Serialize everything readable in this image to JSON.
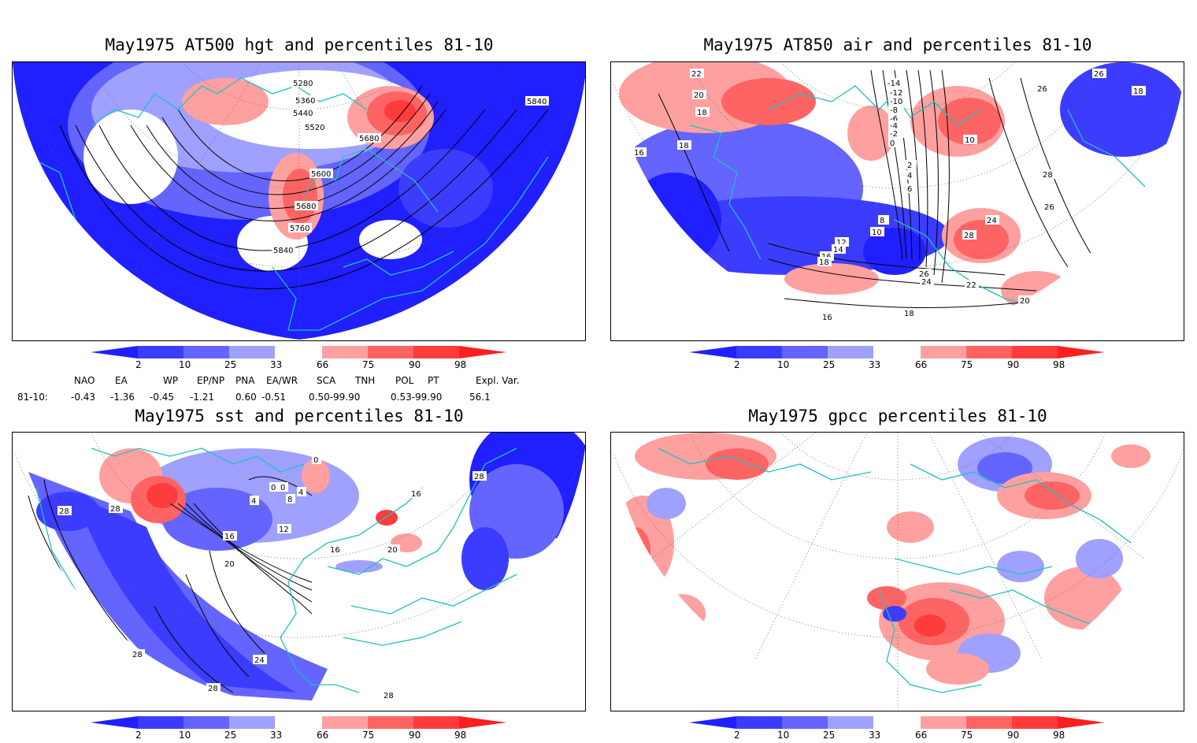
{
  "panels": [
    {
      "title": "May1975 AT500 hgt and percentiles 81-10",
      "contour_labels": [
        "5280",
        "5360",
        "5440",
        "5520",
        "5600",
        "5680",
        "5760",
        "5840",
        "5680",
        "5840"
      ]
    },
    {
      "title": "May1975 AT850 air and percentiles 81-10",
      "contour_labels": [
        "22",
        "20",
        "18",
        "16",
        "18",
        "-14",
        "-12",
        "-10",
        "-8",
        "-6",
        "-4",
        "-2",
        "0",
        "2",
        "4",
        "6",
        "8",
        "10",
        "12",
        "14",
        "16",
        "18",
        "10",
        "24",
        "26",
        "28",
        "26",
        "28",
        "26",
        "24",
        "22",
        "20",
        "18",
        "16",
        "26",
        "18"
      ]
    },
    {
      "title": "May1975 sst and percentiles 81-10",
      "contour_labels": [
        "28",
        "28",
        "16",
        "20",
        "12",
        "8",
        "4",
        "0",
        "0",
        "4",
        "0",
        "16",
        "20",
        "28",
        "16",
        "24",
        "28",
        "28",
        "28"
      ]
    },
    {
      "title": "May1975 gpcc percentiles 81-10",
      "contour_labels": []
    }
  ],
  "colorbar": {
    "ticks": [
      "2",
      "10",
      "25",
      "33",
      "66",
      "75",
      "90",
      "98"
    ],
    "colors": {
      "below_2": "#1f1fff",
      "2_10": "#3c3cff",
      "10_25": "#6464ff",
      "25_33": "#a0a0ff",
      "33_66": "#ffffff",
      "66_75": "#ffa0a0",
      "75_90": "#ff6464",
      "90_98": "#ff3c3c",
      "above_98": "#ff1f1f"
    }
  },
  "indices": {
    "header": [
      "NAO",
      "EA",
      "WP",
      "EP/NP",
      "PNA",
      "EA/WR",
      "SCA",
      "TNH",
      "POL",
      "PT",
      "Expl. Var."
    ],
    "row_label": "81-10:",
    "values": [
      "-0.43",
      "-1.36",
      "-0.45",
      "-1.21",
      "0.60",
      "-0.51",
      "0.50-99.90",
      "0.53-99.90",
      "56.1"
    ]
  },
  "colors": {
    "coast": "#20c0c0",
    "contour": "#000000",
    "frame": "#000000"
  }
}
